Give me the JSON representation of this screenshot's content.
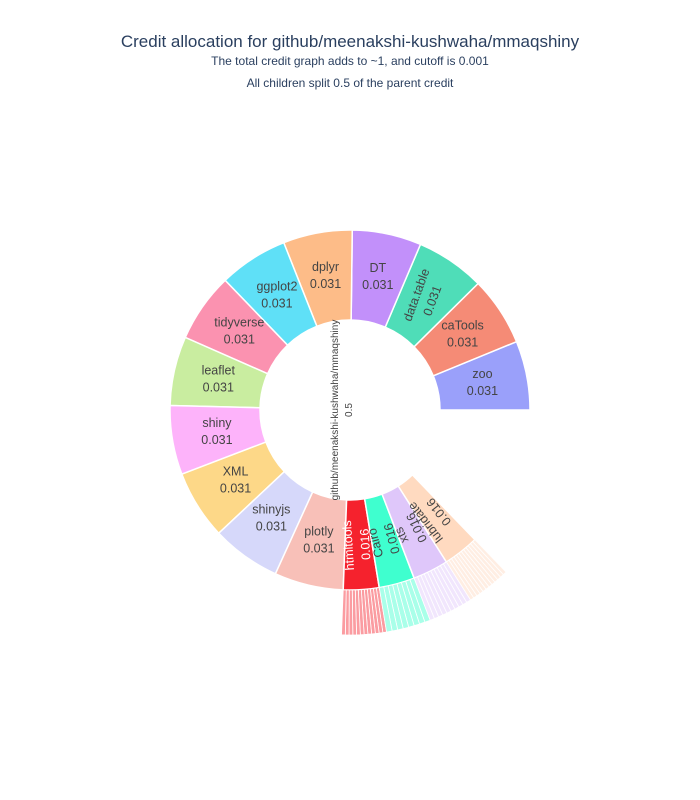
{
  "chart": {
    "title": "Credit allocation for github/meenakshi-kushwaha/mmaqshiny",
    "subtitle_line1": "The total credit graph adds to ~1, and cutoff is 0.001",
    "subtitle_line2": "All children split 0.5 of the parent credit"
  },
  "chart_data": {
    "type": "sunburst",
    "root": {
      "label": "github/meenakshi-kushwaha/mmaqshiny",
      "value": 0.5
    },
    "children": [
      {
        "label": "zoo",
        "value": 0.031,
        "color": "#9AA0FA"
      },
      {
        "label": "caTools",
        "value": 0.031,
        "color": "#F58B76"
      },
      {
        "label": "data.table",
        "value": 0.031,
        "color": "#4FDDB8"
      },
      {
        "label": "DT",
        "value": 0.031,
        "color": "#C290FA"
      },
      {
        "label": "dplyr",
        "value": 0.031,
        "color": "#FDBC88"
      },
      {
        "label": "ggplot2",
        "value": 0.031,
        "color": "#5FE0F7"
      },
      {
        "label": "tidyverse",
        "value": 0.031,
        "color": "#FB92B0"
      },
      {
        "label": "leaflet",
        "value": 0.031,
        "color": "#C9EDA0"
      },
      {
        "label": "shiny",
        "value": 0.031,
        "color": "#FDB3FA"
      },
      {
        "label": "XML",
        "value": 0.031,
        "color": "#FDD888"
      },
      {
        "label": "shinyjs",
        "value": 0.031,
        "color": "#D6D8FA"
      },
      {
        "label": "plotly",
        "value": 0.031,
        "color": "#F8C0B8"
      },
      {
        "label": "htmltools",
        "value": 0.016,
        "color": "#F5222D",
        "grandchildren": 12
      },
      {
        "label": "Cairo",
        "value": 0.016,
        "color": "#3FFFCF",
        "grandchildren": 8
      },
      {
        "label": "xts",
        "value": 0.016,
        "color": "#DFC7FA",
        "grandchildren": 10
      },
      {
        "label": "lubridate",
        "value": 0.016,
        "color": "#FFDAC0",
        "grandchildren": 12
      }
    ]
  }
}
